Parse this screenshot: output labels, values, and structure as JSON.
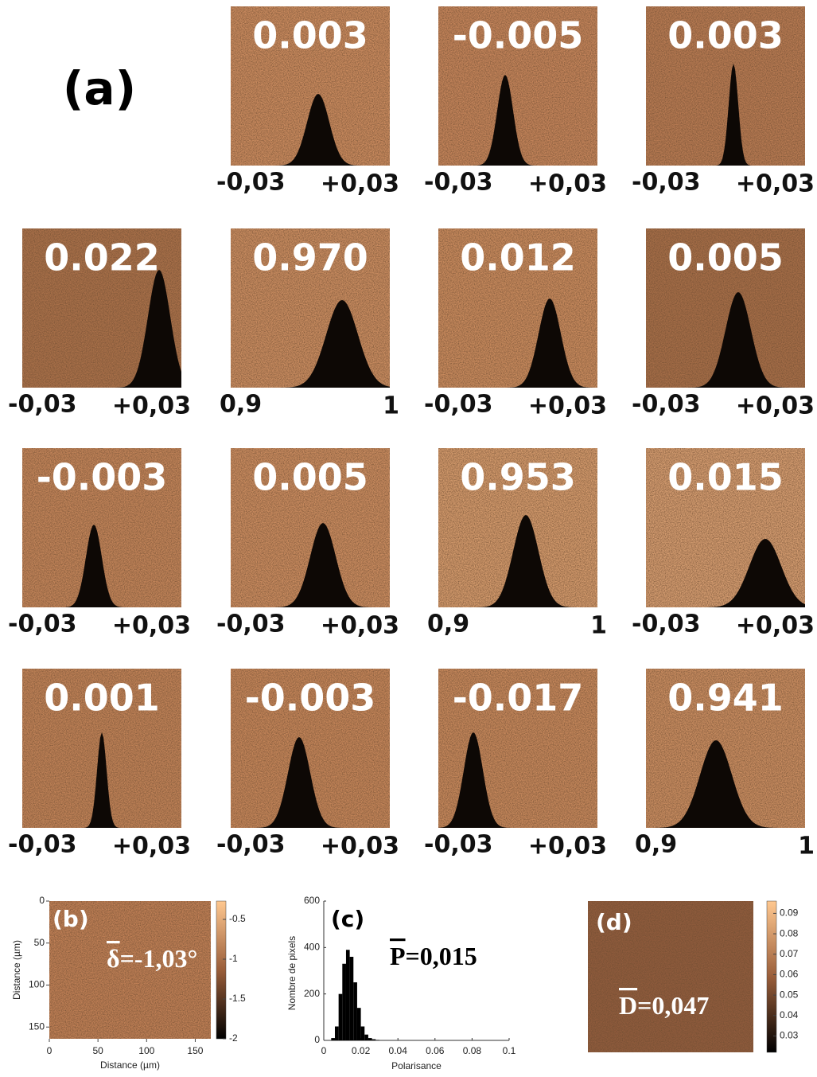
{
  "panel_a": {
    "label": "(a)",
    "cells": [
      {
        "value": "0.003",
        "min": "-0,03",
        "max": "+0,03"
      },
      {
        "value": "-0.005",
        "min": "-0,03",
        "max": "+0,03"
      },
      {
        "value": "0.003",
        "min": "-0,03",
        "max": "+0,03"
      },
      {
        "value": "0.022",
        "min": "-0,03",
        "max": "+0,03"
      },
      {
        "value": "0.970",
        "min": "0,9",
        "max": "1"
      },
      {
        "value": "0.012",
        "min": "-0,03",
        "max": "+0,03"
      },
      {
        "value": "0.005",
        "min": "-0,03",
        "max": "+0,03"
      },
      {
        "value": "-0.003",
        "min": "-0,03",
        "max": "+0,03"
      },
      {
        "value": "0.005",
        "min": "-0,03",
        "max": "+0,03"
      },
      {
        "value": "0.953",
        "min": "0,9",
        "max": "1"
      },
      {
        "value": "0.015",
        "min": "-0,03",
        "max": "+0,03"
      },
      {
        "value": "0.001",
        "min": "-0,03",
        "max": "+0,03"
      },
      {
        "value": "-0.003",
        "min": "-0,03",
        "max": "+0,03"
      },
      {
        "value": "-0.017",
        "min": "-0,03",
        "max": "+0,03"
      },
      {
        "value": "0.941",
        "min": "0,9",
        "max": "1"
      }
    ]
  },
  "panel_b": {
    "label": "(b)",
    "symbol": "δ",
    "annotation": "=-1,03°",
    "xlabel": "Distance (µm)",
    "ylabel": "Distance (µm)",
    "xlim": [
      0,
      166
    ],
    "xticks": [
      0,
      50,
      100,
      150
    ],
    "ylim": [
      0,
      164
    ],
    "yticks": [
      0,
      50,
      100,
      150
    ],
    "clim": [
      -2,
      -0.27
    ],
    "cticks": [
      -0.5,
      -1,
      -1.5,
      -2
    ]
  },
  "chart_data": {
    "type": "histogram",
    "label": "(c)",
    "symbol": "P",
    "annotation": "=0,015",
    "xlabel": "Polarisance",
    "ylabel": "Nombre de pixels",
    "bins": [
      0.004,
      0.006,
      0.008,
      0.01,
      0.012,
      0.014,
      0.016,
      0.018,
      0.02,
      0.022,
      0.024,
      0.026,
      0.028,
      0.03
    ],
    "values": [
      10,
      60,
      200,
      330,
      390,
      360,
      250,
      140,
      60,
      25,
      10,
      5,
      2
    ],
    "color": "#000000",
    "xlim": [
      0,
      0.1
    ],
    "xticks": [
      0,
      0.02,
      0.04,
      0.06,
      0.08,
      0.1
    ],
    "ylim": [
      0,
      600
    ],
    "yticks": [
      0,
      200,
      400,
      600
    ]
  },
  "panel_d": {
    "label": "(d)",
    "symbol": "D",
    "annotation": "=0,047",
    "clim": [
      0.022,
      0.096
    ],
    "cticks": [
      0.09,
      0.08,
      0.07,
      0.06,
      0.05,
      0.04,
      0.03
    ]
  }
}
